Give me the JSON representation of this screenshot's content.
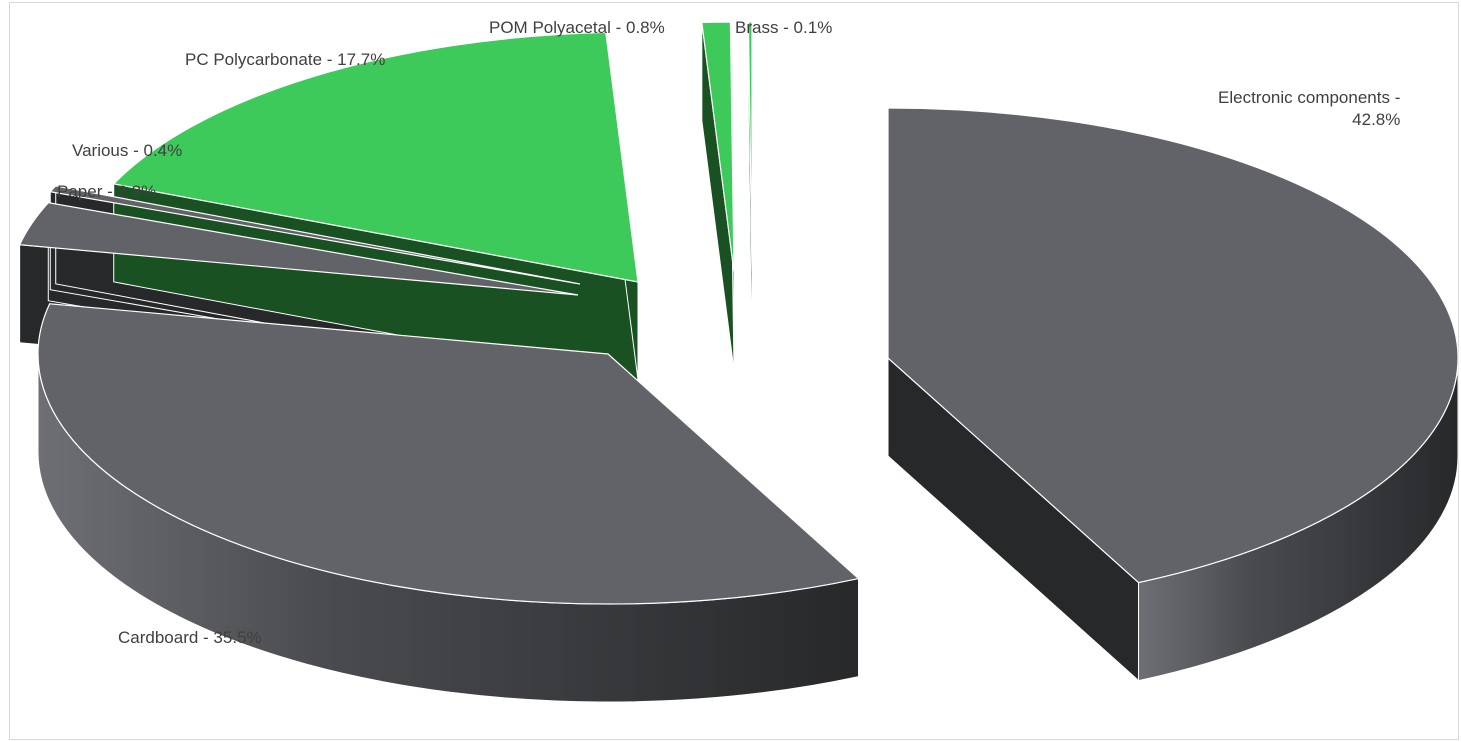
{
  "chart_data": {
    "type": "pie",
    "style": "3d-exploded",
    "title": "",
    "slices": [
      {
        "label": "Electronic components",
        "value": 42.8,
        "label_text": "Electronic components -",
        "label_text_2": "42.8%",
        "top_color": "#626368",
        "side_color": "#27282a"
      },
      {
        "label": "Cardboard",
        "value": 35.5,
        "label_text": "Cardboard - 35.5%",
        "top_color": "#626368",
        "side_color": "#27282a"
      },
      {
        "label": "Paper",
        "value": 2.8,
        "label_text": "Paper - 2.8%",
        "top_color": "#626368",
        "side_color": "#27282a"
      },
      {
        "label": "Various",
        "value": 0.4,
        "label_text": "Various - 0.4%",
        "top_color": "#626368",
        "side_color": "#27282a"
      },
      {
        "label": "PC Polycarbonate",
        "value": 17.7,
        "label_text": "PC Polycarbonate - 17.7%",
        "top_color": "#3dca5a",
        "side_color": "#1a5123"
      },
      {
        "label": "POM Polyacetal",
        "value": 0.8,
        "label_text": "POM Polyacetal - 0.8%",
        "top_color": "#3dca5a",
        "side_color": "#1a5123"
      },
      {
        "label": "Brass",
        "value": 0.1,
        "label_text": "Brass - 0.1%",
        "top_color": "#3dca5a",
        "side_color": "#1a5123"
      }
    ],
    "legend": "none",
    "data_labels": "outside-end"
  }
}
